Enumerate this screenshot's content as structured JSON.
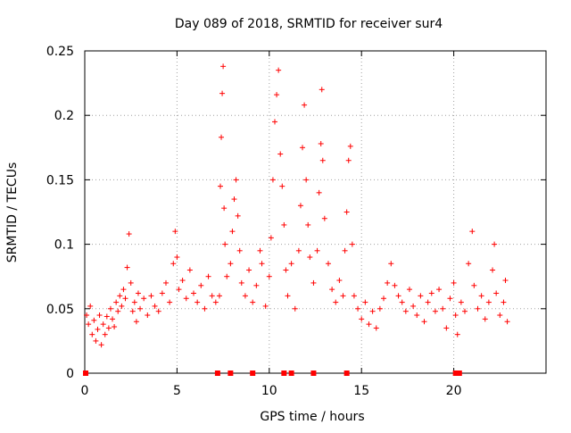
{
  "chart_data": {
    "type": "scatter",
    "title": "Day 089 of 2018, SRMTID for receiver sur4",
    "xlabel": "GPS time / hours",
    "ylabel": "SRMTID / TECUs",
    "xlim": [
      0,
      25
    ],
    "ylim": [
      0,
      0.25
    ],
    "xticks": [
      0,
      5,
      10,
      15,
      20
    ],
    "xtick_labels": [
      "0",
      "5",
      "10",
      "15",
      "20"
    ],
    "yticks": [
      0,
      0.05,
      0.1,
      0.15,
      0.2,
      0.25
    ],
    "ytick_labels": [
      "0",
      "0.05",
      "0.1",
      "0.15",
      "0.2",
      "0.25"
    ],
    "grid": true,
    "marker": "+",
    "series": [
      {
        "name": "SRMTID",
        "color": "#ff0000",
        "points": [
          [
            0.1,
            0.045
          ],
          [
            0.2,
            0.038
          ],
          [
            0.3,
            0.052
          ],
          [
            0.4,
            0.03
          ],
          [
            0.5,
            0.041
          ],
          [
            0.6,
            0.025
          ],
          [
            0.7,
            0.034
          ],
          [
            0.8,
            0.045
          ],
          [
            0.9,
            0.022
          ],
          [
            1.0,
            0.038
          ],
          [
            1.1,
            0.03
          ],
          [
            1.2,
            0.044
          ],
          [
            1.3,
            0.035
          ],
          [
            1.4,
            0.05
          ],
          [
            1.5,
            0.042
          ],
          [
            1.6,
            0.036
          ],
          [
            1.7,
            0.055
          ],
          [
            1.8,
            0.048
          ],
          [
            1.9,
            0.06
          ],
          [
            2.0,
            0.052
          ],
          [
            2.1,
            0.065
          ],
          [
            2.2,
            0.058
          ],
          [
            2.3,
            0.082
          ],
          [
            2.4,
            0.108
          ],
          [
            2.5,
            0.07
          ],
          [
            2.6,
            0.048
          ],
          [
            2.7,
            0.055
          ],
          [
            2.8,
            0.04
          ],
          [
            2.9,
            0.062
          ],
          [
            3.0,
            0.05
          ],
          [
            3.2,
            0.058
          ],
          [
            3.4,
            0.045
          ],
          [
            3.6,
            0.06
          ],
          [
            3.8,
            0.052
          ],
          [
            4.0,
            0.048
          ],
          [
            4.2,
            0.062
          ],
          [
            4.4,
            0.07
          ],
          [
            4.6,
            0.055
          ],
          [
            4.8,
            0.085
          ],
          [
            4.9,
            0.11
          ],
          [
            5.0,
            0.09
          ],
          [
            5.1,
            0.065
          ],
          [
            5.3,
            0.072
          ],
          [
            5.5,
            0.058
          ],
          [
            5.7,
            0.08
          ],
          [
            5.9,
            0.062
          ],
          [
            6.1,
            0.055
          ],
          [
            6.3,
            0.068
          ],
          [
            6.5,
            0.05
          ],
          [
            6.7,
            0.075
          ],
          [
            6.9,
            0.06
          ],
          [
            7.1,
            0.055
          ],
          [
            7.3,
            0.06
          ],
          [
            7.35,
            0.145
          ],
          [
            7.4,
            0.183
          ],
          [
            7.45,
            0.217
          ],
          [
            7.5,
            0.238
          ],
          [
            7.55,
            0.128
          ],
          [
            7.6,
            0.1
          ],
          [
            7.7,
            0.075
          ],
          [
            7.9,
            0.085
          ],
          [
            8.0,
            0.11
          ],
          [
            8.1,
            0.135
          ],
          [
            8.2,
            0.15
          ],
          [
            8.3,
            0.122
          ],
          [
            8.4,
            0.095
          ],
          [
            8.5,
            0.07
          ],
          [
            8.7,
            0.06
          ],
          [
            8.9,
            0.08
          ],
          [
            9.1,
            0.055
          ],
          [
            9.3,
            0.068
          ],
          [
            9.5,
            0.095
          ],
          [
            9.6,
            0.085
          ],
          [
            9.8,
            0.052
          ],
          [
            10.0,
            0.075
          ],
          [
            10.1,
            0.105
          ],
          [
            10.2,
            0.15
          ],
          [
            10.3,
            0.195
          ],
          [
            10.4,
            0.216
          ],
          [
            10.5,
            0.235
          ],
          [
            10.6,
            0.17
          ],
          [
            10.7,
            0.145
          ],
          [
            10.8,
            0.115
          ],
          [
            10.9,
            0.08
          ],
          [
            11.0,
            0.06
          ],
          [
            11.2,
            0.085
          ],
          [
            11.4,
            0.05
          ],
          [
            11.6,
            0.095
          ],
          [
            11.7,
            0.13
          ],
          [
            11.8,
            0.175
          ],
          [
            11.9,
            0.208
          ],
          [
            12.0,
            0.15
          ],
          [
            12.1,
            0.115
          ],
          [
            12.2,
            0.09
          ],
          [
            12.4,
            0.07
          ],
          [
            12.6,
            0.095
          ],
          [
            12.7,
            0.14
          ],
          [
            12.8,
            0.178
          ],
          [
            12.85,
            0.22
          ],
          [
            12.9,
            0.165
          ],
          [
            13.0,
            0.12
          ],
          [
            13.2,
            0.085
          ],
          [
            13.4,
            0.065
          ],
          [
            13.6,
            0.055
          ],
          [
            13.8,
            0.072
          ],
          [
            14.0,
            0.06
          ],
          [
            14.1,
            0.095
          ],
          [
            14.2,
            0.125
          ],
          [
            14.3,
            0.165
          ],
          [
            14.4,
            0.176
          ],
          [
            14.5,
            0.1
          ],
          [
            14.6,
            0.06
          ],
          [
            14.8,
            0.05
          ],
          [
            15.0,
            0.042
          ],
          [
            15.2,
            0.055
          ],
          [
            15.4,
            0.038
          ],
          [
            15.6,
            0.048
          ],
          [
            15.8,
            0.035
          ],
          [
            16.0,
            0.05
          ],
          [
            16.2,
            0.058
          ],
          [
            16.4,
            0.07
          ],
          [
            16.6,
            0.085
          ],
          [
            16.8,
            0.068
          ],
          [
            17.0,
            0.06
          ],
          [
            17.2,
            0.055
          ],
          [
            17.4,
            0.048
          ],
          [
            17.6,
            0.065
          ],
          [
            17.8,
            0.052
          ],
          [
            18.0,
            0.045
          ],
          [
            18.2,
            0.06
          ],
          [
            18.4,
            0.04
          ],
          [
            18.6,
            0.055
          ],
          [
            18.8,
            0.062
          ],
          [
            19.0,
            0.048
          ],
          [
            19.2,
            0.065
          ],
          [
            19.4,
            0.05
          ],
          [
            19.6,
            0.035
          ],
          [
            19.8,
            0.058
          ],
          [
            20.0,
            0.07
          ],
          [
            20.1,
            0.045
          ],
          [
            20.2,
            0.03
          ],
          [
            20.4,
            0.055
          ],
          [
            20.6,
            0.048
          ],
          [
            20.8,
            0.085
          ],
          [
            21.0,
            0.11
          ],
          [
            21.1,
            0.068
          ],
          [
            21.3,
            0.05
          ],
          [
            21.5,
            0.06
          ],
          [
            21.7,
            0.042
          ],
          [
            21.9,
            0.055
          ],
          [
            22.1,
            0.08
          ],
          [
            22.2,
            0.1
          ],
          [
            22.3,
            0.062
          ],
          [
            22.5,
            0.045
          ],
          [
            22.7,
            0.055
          ],
          [
            22.8,
            0.072
          ],
          [
            22.9,
            0.04
          ]
        ]
      }
    ],
    "baseline_markers": {
      "name": "zero-value markers",
      "color": "#ff0000",
      "x": [
        0.05,
        7.2,
        7.9,
        9.1,
        10.8,
        11.2,
        12.4,
        14.2,
        20.1,
        20.3
      ]
    }
  }
}
